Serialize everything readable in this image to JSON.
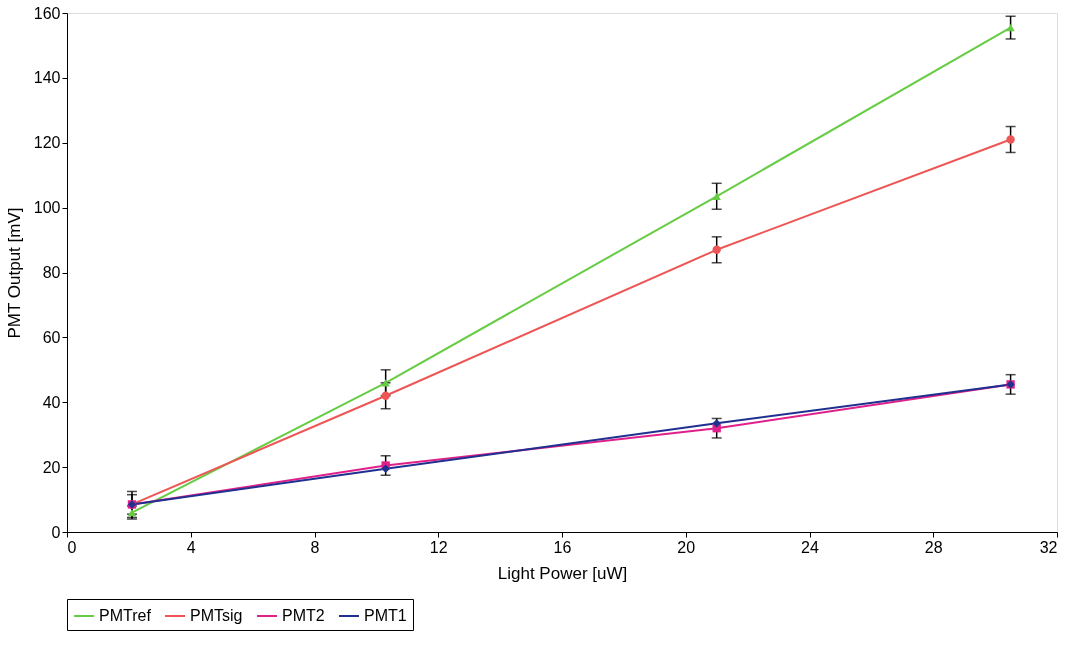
{
  "chart_data": {
    "type": "line",
    "xlabel": "Light Power [uW]",
    "ylabel": "PMT Output [mV]",
    "x": [
      2.1,
      10.3,
      21.0,
      30.5
    ],
    "xlim": [
      0,
      32
    ],
    "xticks": [
      0,
      4,
      8,
      12,
      16,
      20,
      24,
      28,
      32
    ],
    "ylim": [
      0,
      160
    ],
    "yticks": [
      0,
      20,
      40,
      60,
      80,
      100,
      120,
      140,
      160
    ],
    "grid": false,
    "legend": "bottom",
    "line_style": "solid",
    "series": [
      {
        "name": "PMTref",
        "color": "#66cc44",
        "marker": "triangle",
        "values": [
          6,
          46,
          103.5,
          155.5
        ],
        "errors": [
          2,
          4,
          4,
          3.5
        ]
      },
      {
        "name": "PMTsig",
        "color": "#ee5555",
        "marker": "circle",
        "values": [
          8.5,
          42,
          87,
          121
        ],
        "errors": [
          4,
          4,
          4,
          4
        ]
      },
      {
        "name": "PMT2",
        "color": "#e0208a",
        "marker": "square",
        "values": [
          8.5,
          20.5,
          32,
          45.5
        ],
        "errors": [
          3,
          3,
          3,
          3
        ]
      },
      {
        "name": "PMT1",
        "color": "#203090",
        "marker": "diamond",
        "values": [
          8.5,
          19.5,
          33.5,
          45.5
        ],
        "errors": [
          null,
          null,
          null,
          null
        ]
      }
    ]
  }
}
